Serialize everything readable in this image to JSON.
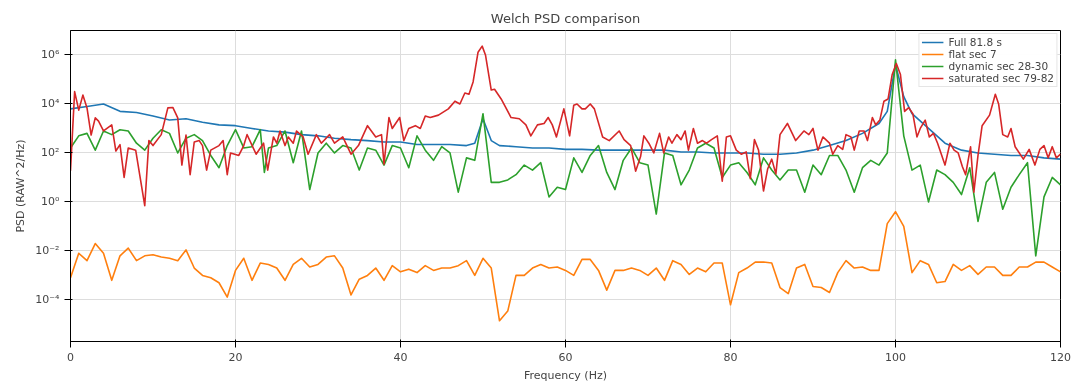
{
  "chart_data": {
    "type": "line",
    "title": "Welch PSD comparison",
    "xlabel": "Frequency (Hz)",
    "ylabel": "PSD (RAW^2/Hz)",
    "log": "y",
    "grid": true,
    "legend": "top right",
    "line_style": "solid",
    "xlim": [
      0,
      120
    ],
    "xticks": [
      0,
      20,
      40,
      60,
      80,
      100,
      120
    ],
    "ylim": [
      2e-06,
      10000000.0
    ],
    "yticks": [
      {
        "value": 0.0001,
        "label": "10⁻⁴"
      },
      {
        "value": 0.01,
        "label": "10⁻²"
      },
      {
        "value": 1,
        "label": "10⁰"
      },
      {
        "value": 100.0,
        "label": "10²"
      },
      {
        "value": 10000.0,
        "label": "10⁴"
      },
      {
        "value": 1000000.0,
        "label": "10⁶"
      }
    ],
    "series": [
      {
        "name": "Full 81.8 s",
        "color": "#1f77b4",
        "x": [
          0,
          2,
          4,
          6,
          8,
          10,
          12,
          14,
          16,
          18,
          20,
          22,
          24,
          26,
          28,
          30,
          32,
          34,
          36,
          38,
          40,
          42,
          44,
          46,
          48,
          49,
          50,
          51,
          52,
          54,
          56,
          58,
          60,
          62,
          64,
          66,
          68,
          70,
          72,
          74,
          76,
          78,
          80,
          82,
          84,
          86,
          88,
          90,
          92,
          94,
          96,
          98,
          99,
          100,
          101,
          102,
          104,
          106,
          108,
          110,
          112,
          114,
          116,
          118,
          120
        ],
        "values": [
          6300.0,
          7900.0,
          10000.0,
          5000.0,
          4500.0,
          3200.0,
          2200.0,
          2500.0,
          1800.0,
          1400.0,
          1300.0,
          1000.0,
          790.0,
          710.0,
          560.0,
          500.0,
          400.0,
          350.0,
          320.0,
          280.0,
          280.0,
          220.0,
          220.0,
          220.0,
          200.0,
          250.0,
          2500.0,
          320.0,
          200.0,
          180.0,
          160.0,
          160.0,
          140.0,
          140.0,
          130.0,
          130.0,
          130.0,
          130.0,
          130.0,
          110.0,
          110.0,
          100.0,
          100.0,
          100.0,
          89.0,
          89.0,
          100.0,
          130.0,
          200.0,
          320.0,
          630.0,
          1600.0,
          5000.0,
          400000.0,
          20000.0,
          4000.0,
          1000.0,
          250.0,
          130.0,
          100.0,
          89.0,
          79.0,
          79.0,
          63.0,
          56.0
        ]
      },
      {
        "name": "flat sec 7",
        "color": "#ff7f0e",
        "x": [
          0,
          1,
          2,
          3,
          4,
          5,
          6,
          7,
          8,
          9,
          10,
          11,
          12,
          13,
          14,
          15,
          16,
          17,
          18,
          19,
          20,
          21,
          22,
          23,
          24,
          25,
          26,
          27,
          28,
          29,
          30,
          31,
          32,
          33,
          34,
          35,
          36,
          37,
          38,
          39,
          40,
          41,
          42,
          43,
          44,
          45,
          46,
          47,
          48,
          49,
          50,
          51,
          52,
          53,
          54,
          55,
          56,
          57,
          58,
          59,
          60,
          61,
          62,
          63,
          64,
          65,
          66,
          67,
          68,
          69,
          70,
          71,
          72,
          73,
          74,
          75,
          76,
          77,
          78,
          79,
          80,
          81,
          82,
          83,
          84,
          85,
          86,
          87,
          88,
          89,
          90,
          91,
          92,
          93,
          94,
          95,
          96,
          97,
          98,
          99,
          100,
          101,
          102,
          103,
          104,
          105,
          106,
          107,
          108,
          109,
          110,
          111,
          112,
          113,
          114,
          115,
          116,
          117,
          118,
          119,
          120
        ],
        "values": [
          0.0008,
          0.008,
          0.004,
          0.02,
          0.008,
          0.00063,
          0.0063,
          0.013,
          0.004,
          0.0063,
          0.007,
          0.0056,
          0.005,
          0.004,
          0.011,
          0.002,
          0.001,
          0.0008,
          0.0005,
          0.00013,
          0.0016,
          0.005,
          0.00063,
          0.0032,
          0.0028,
          0.002,
          0.00063,
          0.0028,
          0.005,
          0.0022,
          0.0028,
          0.0056,
          0.0063,
          0.002,
          0.00016,
          0.0007,
          0.001,
          0.002,
          0.00063,
          0.0025,
          0.0014,
          0.0018,
          0.0013,
          0.0025,
          0.0016,
          0.002,
          0.002,
          0.0025,
          0.004,
          0.001,
          0.005,
          0.002,
          1.4e-05,
          3.5e-05,
          0.001,
          0.001,
          0.002,
          0.0028,
          0.002,
          0.0022,
          0.0016,
          0.001,
          0.0045,
          0.0045,
          0.0016,
          0.00025,
          0.0016,
          0.0016,
          0.002,
          0.0016,
          0.001,
          0.002,
          0.00063,
          0.004,
          0.0028,
          0.0011,
          0.002,
          0.0014,
          0.0032,
          0.0032,
          6.3e-05,
          0.0013,
          0.002,
          0.0035,
          0.0035,
          0.0032,
          0.00032,
          0.00018,
          0.002,
          0.0028,
          0.00035,
          0.00032,
          0.0002,
          0.0013,
          0.004,
          0.002,
          0.0022,
          0.0016,
          0.0016,
          0.13,
          0.4,
          0.1,
          0.0013,
          0.004,
          0.0028,
          0.0005,
          0.00056,
          0.0028,
          0.0016,
          0.0025,
          0.0011,
          0.0022,
          0.0022,
          0.001,
          0.001,
          0.0022,
          0.0022,
          0.0035,
          0.0035,
          0.0022,
          0.0014
        ]
      },
      {
        "name": "dynamic sec 28-30",
        "color": "#2ca02c",
        "x": [
          0,
          1,
          2,
          3,
          4,
          5,
          6,
          7,
          8,
          9,
          10,
          11,
          12,
          13,
          14,
          15,
          16,
          17,
          18,
          19,
          20,
          21,
          22,
          23,
          23.5,
          24,
          25,
          26,
          27,
          28,
          29,
          30,
          31,
          32,
          33,
          34,
          35,
          36,
          37,
          38,
          39,
          40,
          41,
          42,
          43,
          44,
          45,
          46,
          47,
          48,
          49,
          50,
          51,
          52,
          53,
          54,
          55,
          56,
          57,
          58,
          59,
          60,
          61,
          62,
          63,
          64,
          65,
          66,
          67,
          68,
          69,
          70,
          71,
          72,
          73,
          74,
          75,
          76,
          77,
          78,
          79,
          80,
          81,
          82,
          83,
          84,
          85,
          86,
          87,
          88,
          89,
          90,
          91,
          92,
          93,
          94,
          95,
          96,
          97,
          98,
          99,
          100,
          101,
          102,
          103,
          104,
          105,
          106,
          107,
          108,
          109,
          110,
          111,
          112,
          113,
          114,
          115,
          116,
          117,
          118,
          119,
          120
        ],
        "values": [
          160.0,
          500.0,
          630.0,
          130.0,
          790.0,
          560.0,
          890.0,
          790.0,
          250.0,
          130.0,
          400.0,
          890.0,
          630.0,
          100.0,
          400.0,
          560.0,
          320.0,
          79.0,
          25.0,
          200.0,
          890.0,
          160.0,
          180.0,
          890.0,
          16.0,
          160.0,
          200.0,
          790.0,
          40.0,
          790.0,
          3.2,
          100.0,
          250.0,
          100.0,
          200.0,
          160.0,
          20.0,
          160.0,
          130.0,
          32.0,
          200.0,
          160.0,
          25.0,
          500.0,
          130.0,
          50.0,
          180.0,
          100.0,
          2.5,
          63.0,
          50.0,
          4000.0,
          6.3,
          6.3,
          7.9,
          13.0,
          32.0,
          20.0,
          40.0,
          1.6,
          4.0,
          3.2,
          63.0,
          16.0,
          79.0,
          200.0,
          16.0,
          3.2,
          50.0,
          160.0,
          40.0,
          32.0,
          0.32,
          100.0,
          79.0,
          5.0,
          20.0,
          160.0,
          250.0,
          160.0,
          10.0,
          32.0,
          40.0,
          16.0,
          5.0,
          63.0,
          20.0,
          7.9,
          20.0,
          20.0,
          2.5,
          32.0,
          13.0,
          79.0,
          79.0,
          20.0,
          2.5,
          25.0,
          50.0,
          32.0,
          100.0,
          630000.0,
          500.0,
          20.0,
          32.0,
          1.0,
          20.0,
          13.0,
          6.3,
          2.0,
          25.0,
          0.16,
          6.3,
          16.0,
          0.5,
          4.0,
          13.0,
          40.0,
          0.0063,
          1.6,
          10.0,
          5.0
        ]
      },
      {
        "name": "saturated sec 79-82",
        "color": "#d62728",
        "x": [
          0,
          0.5,
          1,
          1.5,
          2,
          2.5,
          3,
          3.4,
          4,
          5,
          5.5,
          6,
          6.5,
          7,
          7.9,
          9,
          9.5,
          10,
          11,
          11.8,
          12.4,
          13,
          13.5,
          14,
          14.5,
          15,
          15.6,
          16,
          16.5,
          17,
          18,
          18.5,
          19,
          19.4,
          20.4,
          21,
          21.4,
          22.5,
          23.4,
          23.9,
          24.6,
          25,
          25.4,
          26,
          26.4,
          27,
          27.4,
          28.2,
          28.8,
          29.8,
          30.4,
          31.4,
          32,
          33,
          34,
          34.9,
          36,
          37,
          37.7,
          38,
          38.6,
          39,
          39.9,
          40.4,
          41,
          41.8,
          42.4,
          43,
          43.6,
          44.6,
          45.8,
          46.6,
          47.2,
          47.8,
          48.3,
          48.8,
          49.4,
          49.9,
          50.3,
          51,
          51.4,
          52.2,
          53.4,
          54.4,
          55.2,
          55.8,
          56.6,
          57.4,
          57.9,
          58.4,
          58.9,
          59.8,
          60.5,
          61,
          61.4,
          62,
          62.4,
          63,
          63.5,
          64.5,
          65.3,
          66.5,
          67.1,
          67.9,
          68.5,
          69.1,
          69.5,
          70.1,
          70.7,
          71.4,
          71.9,
          72.5,
          72.9,
          73.5,
          74,
          74.5,
          74.9,
          75.5,
          76,
          76.6,
          77.1,
          77.7,
          78.4,
          79,
          79.5,
          80,
          80.7,
          81.3,
          81.9,
          82.4,
          82.9,
          83.4,
          84,
          84.5,
          85,
          85.5,
          86,
          86.9,
          87.9,
          88.9,
          89.5,
          90,
          90.6,
          91.2,
          92,
          92.4,
          93,
          93.6,
          94,
          94.6,
          95,
          95.6,
          96.2,
          96.6,
          97.2,
          97.6,
          98.1,
          98.6,
          99.1,
          99.6,
          100.1,
          100.6,
          101.1,
          101.6,
          102.1,
          102.6,
          103,
          103.6,
          104.1,
          104.6,
          105.1,
          106,
          106.6,
          107.1,
          107.6,
          108.1,
          108.5,
          109.1,
          109.5,
          110,
          110.5,
          111.4,
          112.1,
          112.5,
          113,
          113.6,
          114,
          114.5,
          115.5,
          116.2,
          116.9,
          117.5,
          118,
          118.5,
          119,
          119.5,
          120
        ],
        "values": [
          19.0,
          32000.0,
          5600.0,
          23000.0,
          6900.0,
          540.0,
          2700.0,
          2000.0,
          790.0,
          1400.0,
          120.0,
          220.0,
          10.0,
          160.0,
          130.0,
          0.7,
          320.0,
          200.0,
          560.0,
          6900.0,
          7200.0,
          2700.0,
          32.0,
          540.0,
          13.0,
          280.0,
          320.0,
          200.0,
          20.0,
          130.0,
          200.0,
          320.0,
          13.0,
          100.0,
          79.0,
          200.0,
          560.0,
          89.0,
          250.0,
          20.0,
          450.0,
          250.0,
          790.0,
          200.0,
          450.0,
          250.0,
          790.0,
          450.0,
          89.0,
          560.0,
          250.0,
          560.0,
          250.0,
          450.0,
          89.0,
          200.0,
          1300.0,
          450.0,
          560.0,
          35.0,
          2800.0,
          1000.0,
          2800.0,
          320.0,
          1000.0,
          1300.0,
          1000.0,
          3200.0,
          2800.0,
          3500.0,
          6300.0,
          13000.0,
          10000.0,
          28000.0,
          25000.0,
          79000.0,
          1300000.0,
          2300000.0,
          1000000.0,
          37000.0,
          40000.0,
          16000.0,
          2800.0,
          2500.0,
          1400.0,
          500.0,
          1400.0,
          1600.0,
          2800.0,
          1400.0,
          450.0,
          6300.0,
          500.0,
          8900.0,
          10000.0,
          6300.0,
          6300.0,
          10000.0,
          6300.0,
          450.0,
          320.0,
          790.0,
          350.0,
          200.0,
          18.0,
          71.0,
          500.0,
          250.0,
          100.0,
          630.0,
          100.0,
          450.0,
          250.0,
          560.0,
          350.0,
          790.0,
          130.0,
          1000.0,
          250.0,
          320.0,
          250.0,
          350.0,
          500.0,
          7.1,
          450.0,
          500.0,
          130.0,
          89.0,
          110.0,
          8.9,
          350.0,
          130.0,
          2.8,
          22.0,
          56.0,
          14.0,
          560.0,
          1600.0,
          320.0,
          790.0,
          560.0,
          1000.0,
          130.0,
          450.0,
          250.0,
          89.0,
          200.0,
          140.0,
          560.0,
          450.0,
          130.0,
          790.0,
          790.0,
          320.0,
          2800.0,
          1400.0,
          2200.0,
          13000.0,
          16000.0,
          160000.0,
          450000.0,
          160000.0,
          5000.0,
          7100.0,
          4000.0,
          450.0,
          1000.0,
          2200.0,
          450.0,
          630.0,
          250.0,
          32.0,
          250.0,
          130.0,
          100.0,
          28.0,
          13.0,
          180.0,
          2.5,
          79.0,
          1300.0,
          3500.0,
          25000.0,
          10000.0,
          560.0,
          450.0,
          1000.0,
          180.0,
          56.0,
          140.0,
          32.0,
          140.0,
          200.0,
          63.0,
          180.0,
          63.0,
          89.0
        ]
      }
    ]
  }
}
